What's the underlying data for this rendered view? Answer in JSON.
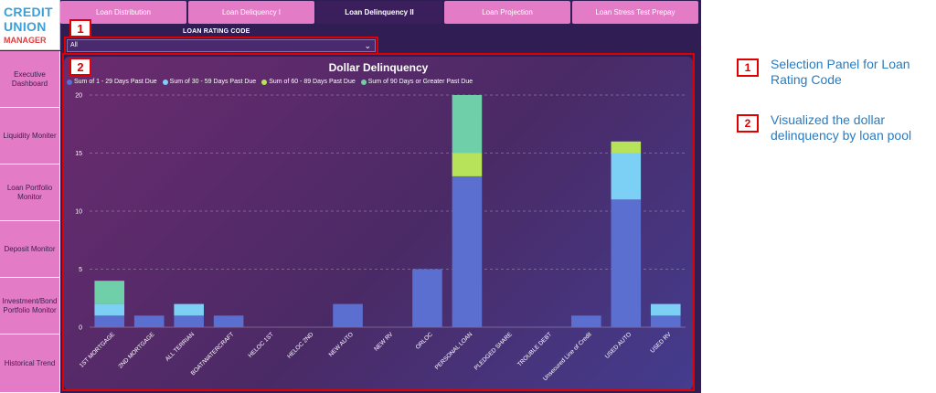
{
  "logo": {
    "line1": "CREDIT",
    "line2": "UNION",
    "line3": "MANAGER"
  },
  "tabs": [
    "Loan Distribution",
    "Loan Deliquency I",
    "Loan Delinquency II",
    "Loan Projection",
    "Loan Stress Test Prepay"
  ],
  "active_tab": "Loan Delinquency II",
  "sidebar": [
    "Executive Dashboard",
    "Liquidity Moniter",
    "Loan Portfolio Monitor",
    "Deposit Monitor",
    "Investment/Bond Portfolio Monitor",
    "Historical Trend"
  ],
  "filter": {
    "label": "LOAN RATING CODE",
    "value": "All"
  },
  "markers": {
    "one": "1",
    "two": "2"
  },
  "annotations": [
    {
      "num": "1",
      "text": "Selection Panel for Loan Rating Code"
    },
    {
      "num": "2",
      "text": "Visualized the dollar delinquency by loan pool"
    }
  ],
  "colors": {
    "s1": "#5a6fd0",
    "s2": "#7dd0f5",
    "s3": "#b6e35a",
    "s4": "#6fcfa8",
    "accent": "#e00000",
    "annotation_text": "#2a7bbf"
  },
  "chart_data": {
    "type": "bar",
    "stacked": true,
    "title": "Dollar Delinquency",
    "categories": [
      "1ST MORTGAGE",
      "2ND MORTGAGE",
      "ALL TERRIAN",
      "BOAT/WATERCRAFT",
      "HELOC 1ST",
      "HELOC 2ND",
      "NEW AUTO",
      "NEW RV",
      "ORLOC",
      "PERSONAL LOAN",
      "PLEDGED SHARE",
      "TROUBLE DEBT",
      "Unsecured Line of Credit",
      "USED AUTO",
      "USED RV"
    ],
    "series": [
      {
        "name": "Sum of 1 - 29 Days Past Due",
        "values": [
          1,
          1,
          1,
          1,
          0,
          0,
          2,
          0,
          5,
          13,
          0,
          0,
          1,
          11,
          1
        ]
      },
      {
        "name": "Sum of 30 - 59 Days Past Due",
        "values": [
          1,
          0,
          1,
          0,
          0,
          0,
          0,
          0,
          0,
          0,
          0,
          0,
          0,
          4,
          1
        ]
      },
      {
        "name": "Sum of 60 - 89 Days Past Due",
        "values": [
          0,
          0,
          0,
          0,
          0,
          0,
          0,
          0,
          0,
          2,
          0,
          0,
          0,
          1,
          0
        ]
      },
      {
        "name": "Sum of 90 Days or Greater Past Due",
        "values": [
          2,
          0,
          0,
          0,
          0,
          0,
          0,
          0,
          0,
          5,
          0,
          0,
          0,
          0,
          0
        ]
      }
    ],
    "yticks": [
      0,
      5,
      10,
      15,
      20
    ],
    "ylim": [
      0,
      20
    ],
    "grid": true,
    "legend": "top-left"
  }
}
